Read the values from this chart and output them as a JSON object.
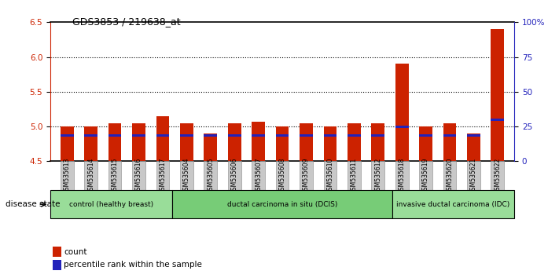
{
  "title": "GDS3853 / 219638_at",
  "samples": [
    "GSM535613",
    "GSM535614",
    "GSM535615",
    "GSM535616",
    "GSM535617",
    "GSM535604",
    "GSM535605",
    "GSM535606",
    "GSM535607",
    "GSM535608",
    "GSM535609",
    "GSM535610",
    "GSM535611",
    "GSM535612",
    "GSM535618",
    "GSM535619",
    "GSM535620",
    "GSM535621",
    "GSM535622"
  ],
  "red_values": [
    5.0,
    5.0,
    5.05,
    5.05,
    5.15,
    5.05,
    4.9,
    5.05,
    5.07,
    5.0,
    5.05,
    5.0,
    5.05,
    5.05,
    5.9,
    5.0,
    5.05,
    4.9,
    6.4
  ],
  "blue_values": [
    4.87,
    4.87,
    4.87,
    4.87,
    4.87,
    4.87,
    4.87,
    4.87,
    4.87,
    4.87,
    4.87,
    4.87,
    4.87,
    4.87,
    5.0,
    4.87,
    4.87,
    4.87,
    5.1
  ],
  "ylim_left": [
    4.5,
    6.5
  ],
  "ylim_right": [
    0,
    100
  ],
  "yticks_left": [
    4.5,
    5.0,
    5.5,
    6.0,
    6.5
  ],
  "yticks_right": [
    0,
    25,
    50,
    75,
    100
  ],
  "ytick_labels_right": [
    "0",
    "25",
    "50",
    "75",
    "100%"
  ],
  "bar_width": 0.55,
  "blue_bar_width": 0.55,
  "blue_bar_height": 0.035,
  "red_color": "#cc2200",
  "blue_color": "#2222bb",
  "bar_bg_color": "#c8c8c8",
  "groups": [
    {
      "label": "control (healthy breast)",
      "start": 0,
      "end": 5
    },
    {
      "label": "ductal carcinoma in situ (DCIS)",
      "start": 5,
      "end": 14
    },
    {
      "label": "invasive ductal carcinoma (IDC)",
      "start": 14,
      "end": 19
    }
  ],
  "group_colors": [
    "#99dd99",
    "#77cc77",
    "#99dd99"
  ],
  "legend_count": "count",
  "legend_pct": "percentile rank within the sample",
  "disease_state_label": "disease state",
  "axis_color_left": "#cc2200",
  "axis_color_right": "#2222bb"
}
